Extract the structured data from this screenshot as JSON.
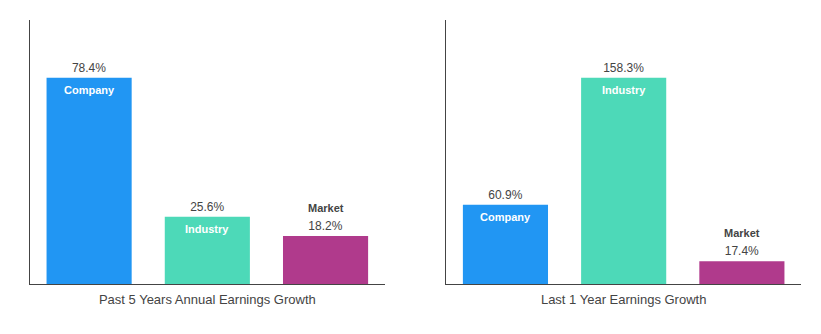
{
  "chart_data": [
    {
      "type": "bar",
      "title": "Past 5 Years Annual Earnings Growth",
      "categories": [
        "Company",
        "Industry",
        "Market"
      ],
      "values": [
        78.4,
        25.6,
        18.2
      ],
      "value_labels": [
        "78.4%",
        "25.6%",
        "18.2%"
      ],
      "colors": [
        "#2196f3",
        "#4dd9b8",
        "#b03a8c"
      ],
      "ylim": [
        0,
        100.352
      ],
      "data_labels": true,
      "tick_labels": false,
      "grid": false
    },
    {
      "type": "bar",
      "title": "Last 1 Year Earnings Growth",
      "categories": [
        "Company",
        "Industry",
        "Market"
      ],
      "values": [
        60.9,
        158.3,
        17.4
      ],
      "value_labels": [
        "60.9%",
        "158.3%",
        "17.4%"
      ],
      "colors": [
        "#2196f3",
        "#4dd9b8",
        "#b03a8c"
      ],
      "ylim": [
        0,
        202.624
      ],
      "data_labels": true,
      "tick_labels": false,
      "grid": false
    }
  ]
}
